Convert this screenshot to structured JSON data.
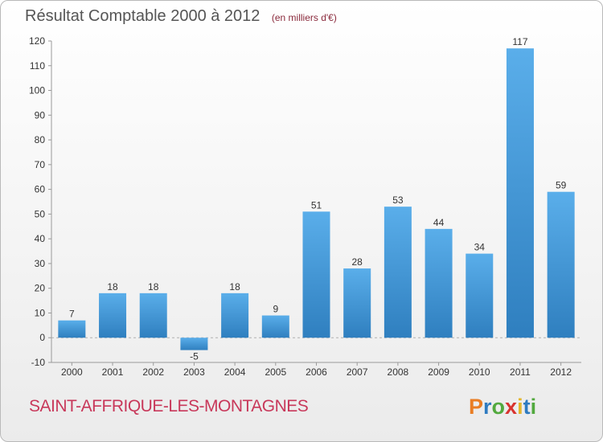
{
  "header": {
    "title": "Résultat Comptable 2000 à 2012",
    "subtitle": "(en milliers d'€)"
  },
  "footer": {
    "town": "SAINT-AFFRIQUE-LES-MONTAGNES",
    "logo_letters": [
      "P",
      "r",
      "o",
      "x",
      "i",
      "t",
      "i"
    ],
    "logo_colors": [
      "#e97d24",
      "#2f7bc0",
      "#52a93e",
      "#d8332f",
      "#e4b62b",
      "#2f7bc0",
      "#52a93e"
    ]
  },
  "chart_data": {
    "type": "bar",
    "categories": [
      "2000",
      "2001",
      "2002",
      "2003",
      "2004",
      "2005",
      "2006",
      "2007",
      "2008",
      "2009",
      "2010",
      "2011",
      "2012"
    ],
    "values": [
      7,
      18,
      18,
      -5,
      18,
      9,
      51,
      28,
      53,
      44,
      34,
      117,
      59
    ],
    "title": "Résultat Comptable 2000 à 2012",
    "subtitle": "(en milliers d'€)",
    "ylim": [
      -10,
      120
    ],
    "yticks": [
      -10,
      0,
      10,
      20,
      30,
      40,
      50,
      60,
      70,
      80,
      90,
      100,
      110,
      120
    ],
    "grid": false,
    "bar_color": "#4a9fdc"
  }
}
